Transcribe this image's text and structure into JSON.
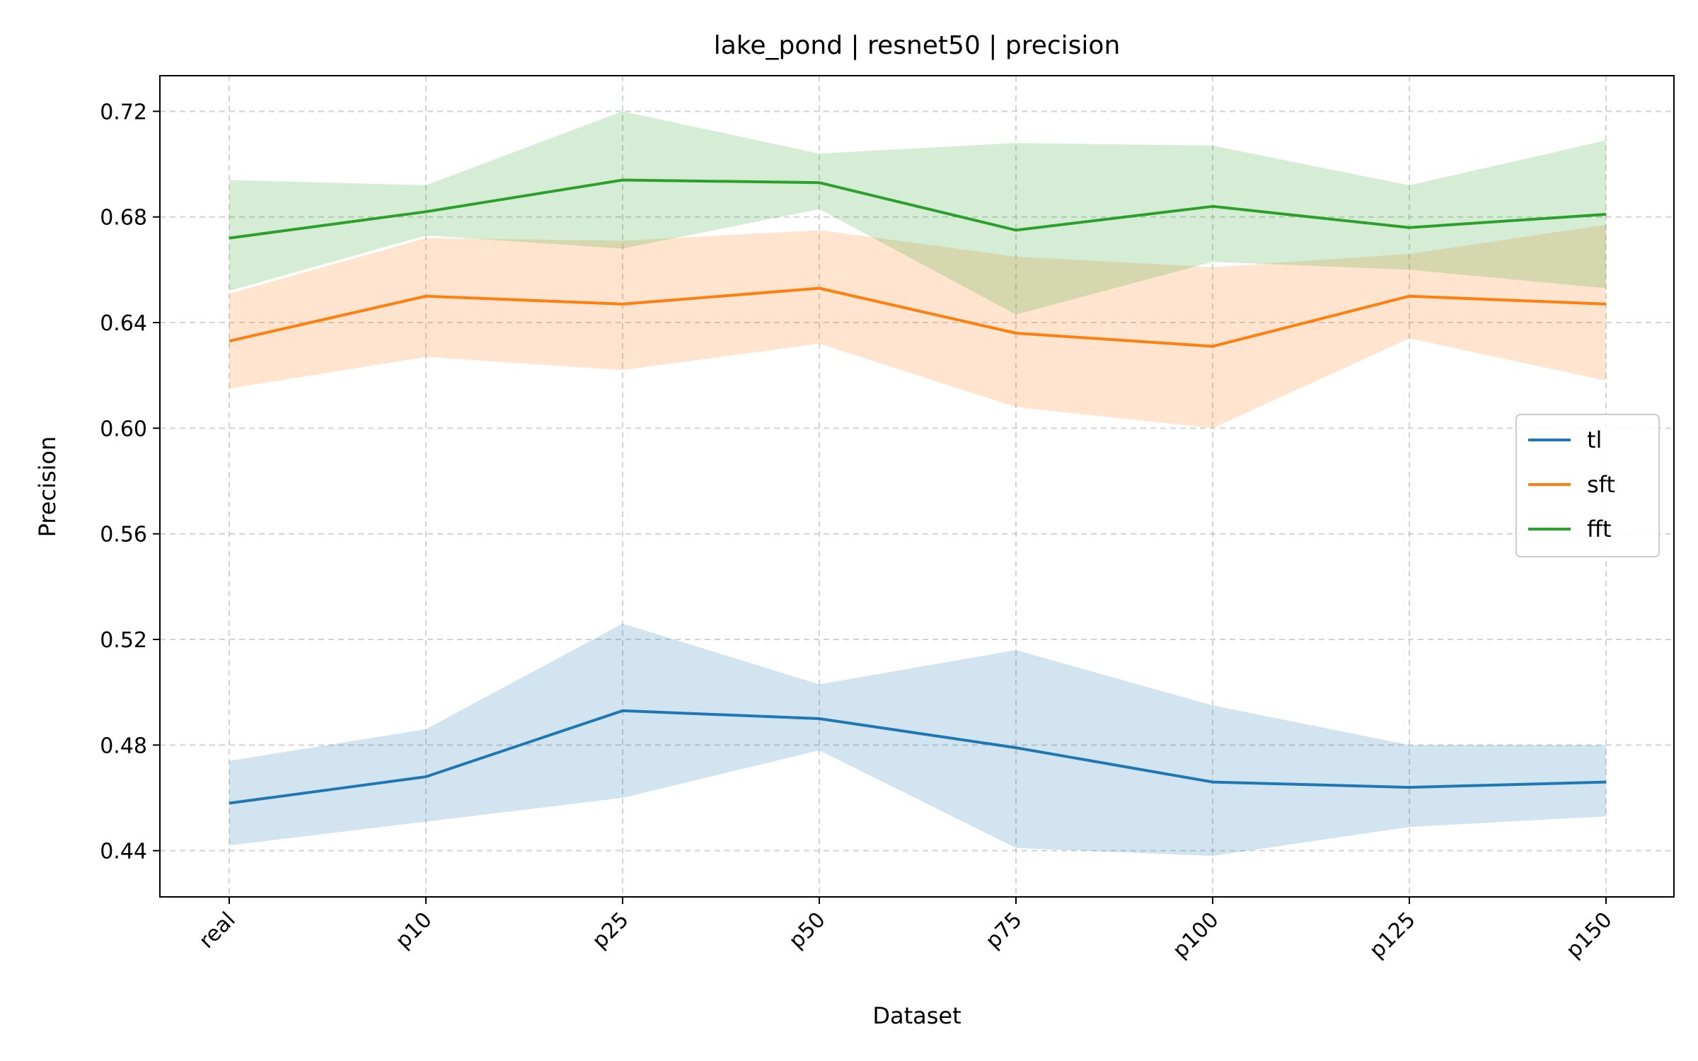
{
  "chart_data": {
    "type": "line",
    "title": "lake_pond | resnet50 | precision",
    "xlabel": "Dataset",
    "ylabel": "Precision",
    "categories": [
      "real",
      "p10",
      "p25",
      "p50",
      "p75",
      "p100",
      "p125",
      "p150"
    ],
    "ylim": [
      0.4225,
      0.7335
    ],
    "yticks": [
      0.44,
      0.48,
      0.52,
      0.56,
      0.6,
      0.64,
      0.68,
      0.72
    ],
    "grid": true,
    "legend_position": "center-right",
    "series": [
      {
        "name": "tl",
        "color": "#1f77b4",
        "values": [
          0.458,
          0.468,
          0.493,
          0.49,
          0.479,
          0.466,
          0.464,
          0.466
        ],
        "lower": [
          0.442,
          0.451,
          0.46,
          0.478,
          0.441,
          0.438,
          0.449,
          0.453
        ],
        "upper": [
          0.474,
          0.486,
          0.526,
          0.503,
          0.516,
          0.495,
          0.48,
          0.48
        ]
      },
      {
        "name": "sft",
        "color": "#ff7f0e",
        "values": [
          0.633,
          0.65,
          0.647,
          0.653,
          0.636,
          0.631,
          0.65,
          0.647
        ],
        "lower": [
          0.615,
          0.627,
          0.622,
          0.632,
          0.608,
          0.6,
          0.634,
          0.618
        ],
        "upper": [
          0.651,
          0.672,
          0.671,
          0.675,
          0.665,
          0.661,
          0.666,
          0.677
        ]
      },
      {
        "name": "fft",
        "color": "#2ca02c",
        "values": [
          0.672,
          0.682,
          0.694,
          0.693,
          0.675,
          0.684,
          0.676,
          0.681
        ],
        "lower": [
          0.652,
          0.673,
          0.668,
          0.683,
          0.643,
          0.663,
          0.66,
          0.653
        ],
        "upper": [
          0.694,
          0.692,
          0.72,
          0.704,
          0.708,
          0.707,
          0.692,
          0.709
        ]
      }
    ]
  }
}
